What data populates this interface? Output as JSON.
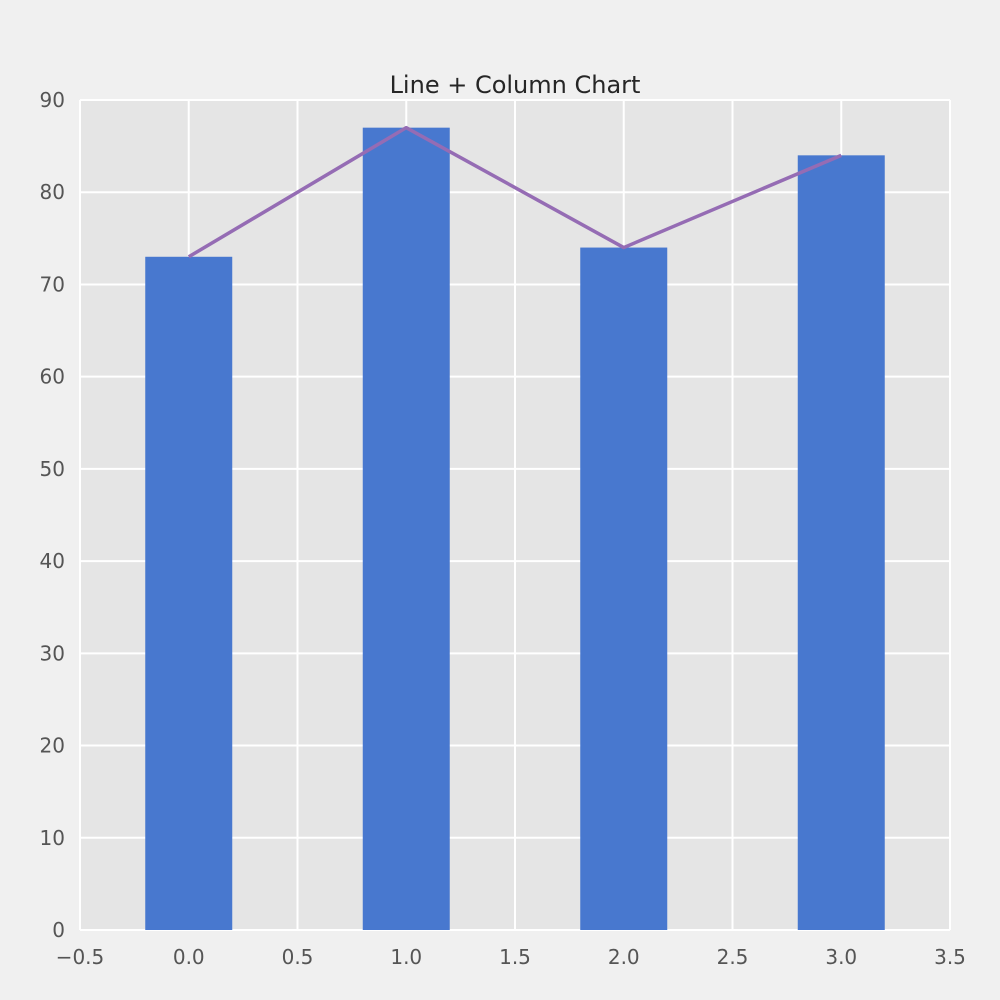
{
  "chart_data": {
    "type": "bar",
    "title": "Line + Column Chart",
    "xlabel": "",
    "ylabel": "",
    "x": [
      0,
      1,
      2,
      3
    ],
    "series": [
      {
        "kind": "bar",
        "values": [
          73,
          87,
          74,
          84
        ],
        "color": "#4878cf"
      },
      {
        "kind": "line",
        "values": [
          73,
          87,
          74,
          84
        ],
        "color": "#956cb4"
      }
    ],
    "bar_width": 0.4,
    "xlim": [
      -0.5,
      3.5
    ],
    "ylim": [
      0,
      90
    ],
    "xticks": [
      "−0.5",
      "0.0",
      "0.5",
      "1.0",
      "1.5",
      "2.0",
      "2.5",
      "3.0",
      "3.5"
    ],
    "xtick_values": [
      -0.5,
      0,
      0.5,
      1,
      1.5,
      2,
      2.5,
      3,
      3.5
    ],
    "yticks": [
      "0",
      "10",
      "20",
      "30",
      "40",
      "50",
      "60",
      "70",
      "80",
      "90"
    ],
    "ytick_values": [
      0,
      10,
      20,
      30,
      40,
      50,
      60,
      70,
      80,
      90
    ],
    "grid": true,
    "plot_background": "#e5e5e5",
    "figure_background": "#f0f0f0",
    "grid_color": "#ffffff"
  }
}
